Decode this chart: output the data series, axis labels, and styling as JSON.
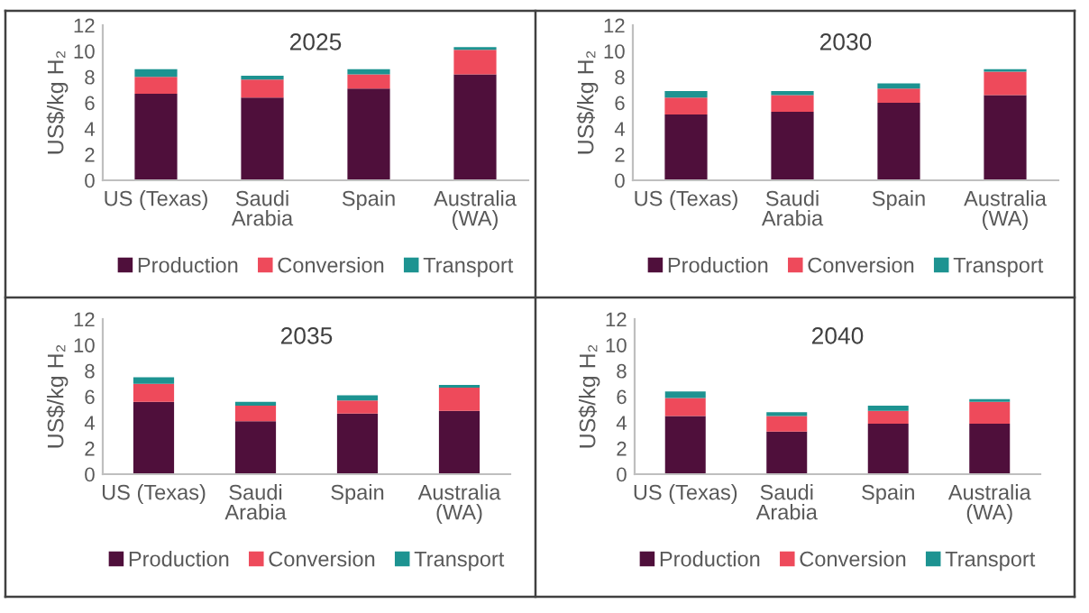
{
  "chart_data": [
    {
      "type": "bar",
      "title": "2025",
      "ylabel": "US$/kg H₂",
      "categories": [
        "US (Texas)",
        "Saudi\nArabia",
        "Spain",
        "Australia\n(WA)"
      ],
      "stacked": true,
      "ylim": [
        0,
        12
      ],
      "yticks": [
        0,
        2,
        4,
        6,
        8,
        10,
        12
      ],
      "legend": "bottom",
      "series": [
        {
          "name": "Production",
          "color": "#4f0f3b",
          "values": [
            6.7,
            6.4,
            7.1,
            8.2
          ]
        },
        {
          "name": "Conversion",
          "color": "#ee4a5b",
          "values": [
            1.3,
            1.4,
            1.1,
            1.9
          ]
        },
        {
          "name": "Transport",
          "color": "#1d9391",
          "values": [
            0.6,
            0.3,
            0.4,
            0.2
          ]
        }
      ]
    },
    {
      "type": "bar",
      "title": "2030",
      "ylabel": "US$/kg H₂",
      "categories": [
        "US (Texas)",
        "Saudi\nArabia",
        "Spain",
        "Australia\n(WA)"
      ],
      "stacked": true,
      "ylim": [
        0,
        12
      ],
      "yticks": [
        0,
        2,
        4,
        6,
        8,
        10,
        12
      ],
      "legend": "bottom",
      "series": [
        {
          "name": "Production",
          "color": "#4f0f3b",
          "values": [
            5.1,
            5.3,
            6.0,
            6.6
          ]
        },
        {
          "name": "Conversion",
          "color": "#ee4a5b",
          "values": [
            1.3,
            1.3,
            1.1,
            1.8
          ]
        },
        {
          "name": "Transport",
          "color": "#1d9391",
          "values": [
            0.5,
            0.3,
            0.4,
            0.2
          ]
        }
      ]
    },
    {
      "type": "bar",
      "title": "2035",
      "ylabel": "US$/kg H₂",
      "categories": [
        "US (Texas)",
        "Saudi\nArabia",
        "Spain",
        "Australia\n(WA)"
      ],
      "stacked": true,
      "ylim": [
        0,
        12
      ],
      "yticks": [
        0,
        2,
        4,
        6,
        8,
        10,
        12
      ],
      "legend": "bottom",
      "series": [
        {
          "name": "Production",
          "color": "#4f0f3b",
          "values": [
            5.6,
            4.1,
            4.7,
            4.9
          ]
        },
        {
          "name": "Conversion",
          "color": "#ee4a5b",
          "values": [
            1.4,
            1.2,
            1.0,
            1.8
          ]
        },
        {
          "name": "Transport",
          "color": "#1d9391",
          "values": [
            0.5,
            0.3,
            0.4,
            0.2
          ]
        }
      ]
    },
    {
      "type": "bar",
      "title": "2040",
      "ylabel": "US$/kg H₂",
      "categories": [
        "US (Texas)",
        "Saudi\nArabia",
        "Spain",
        "Australia\n(WA)"
      ],
      "stacked": true,
      "ylim": [
        0,
        12
      ],
      "yticks": [
        0,
        2,
        4,
        6,
        8,
        10,
        12
      ],
      "legend": "bottom",
      "series": [
        {
          "name": "Production",
          "color": "#4f0f3b",
          "values": [
            4.5,
            3.3,
            3.9,
            3.9
          ]
        },
        {
          "name": "Conversion",
          "color": "#ee4a5b",
          "values": [
            1.4,
            1.2,
            1.0,
            1.7
          ]
        },
        {
          "name": "Transport",
          "color": "#1d9391",
          "values": [
            0.5,
            0.3,
            0.4,
            0.2
          ]
        }
      ]
    }
  ]
}
